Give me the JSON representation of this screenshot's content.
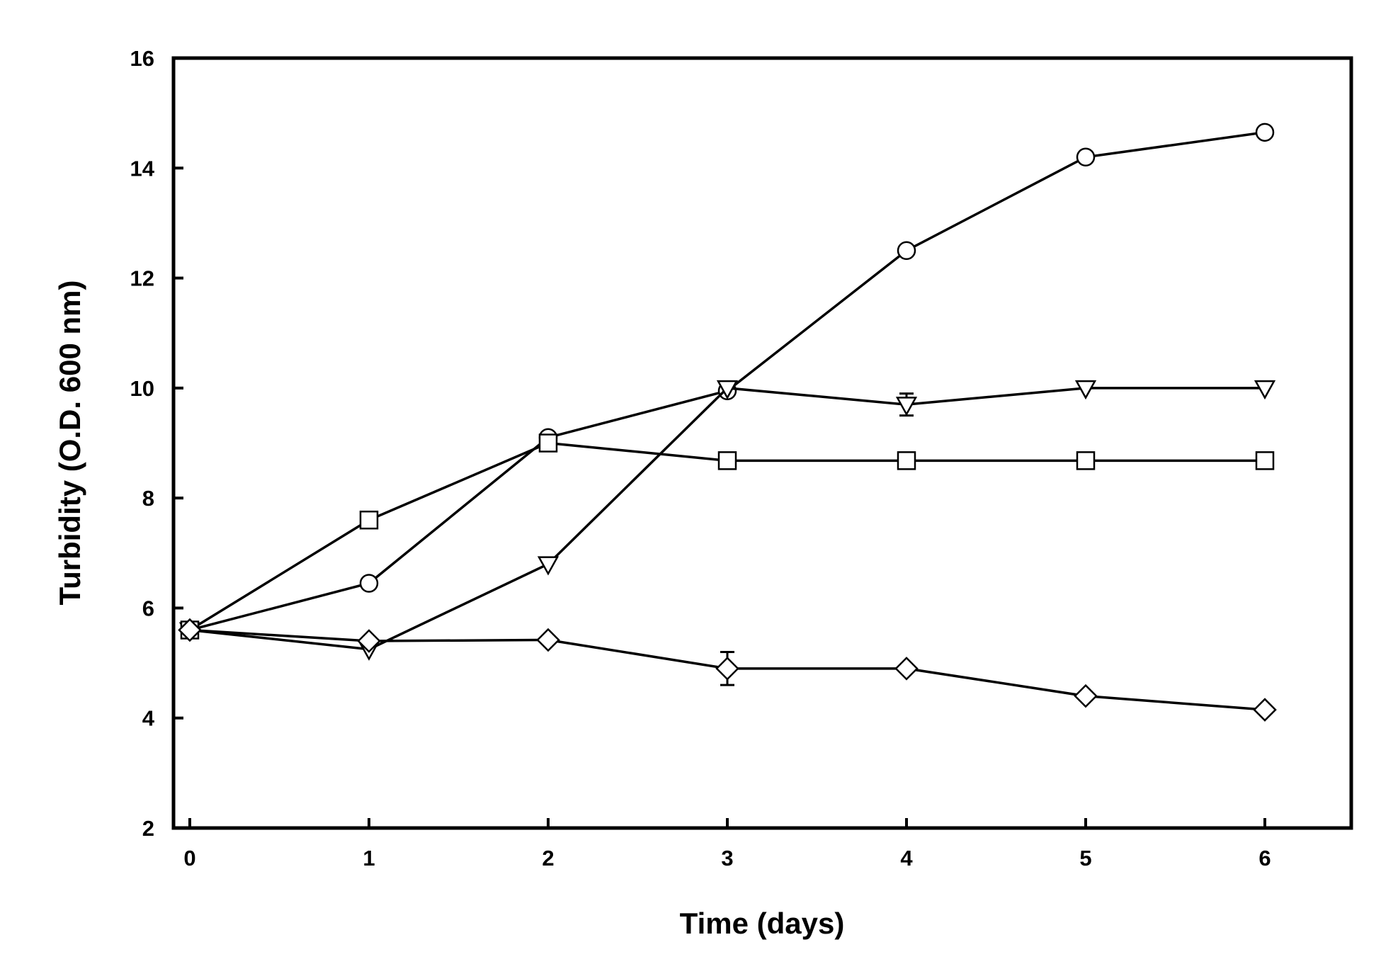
{
  "chart_data": {
    "type": "line",
    "title": "",
    "xlabel": "Time (days)",
    "ylabel": "Turbidity (O.D. 600 nm)",
    "xlim": [
      -0.1,
      6.5
    ],
    "ylim": [
      2,
      16
    ],
    "xticks": [
      0,
      1,
      2,
      3,
      4,
      5,
      6
    ],
    "yticks": [
      2,
      4,
      6,
      8,
      10,
      12,
      14,
      16
    ],
    "xtick_labels": [
      "0",
      "1",
      "2",
      "3",
      "4",
      "5",
      "6"
    ],
    "ytick_labels": [
      "2",
      "4",
      "6",
      "8",
      "10",
      "12",
      "14",
      "16"
    ],
    "grid": false,
    "legend": "none",
    "series": [
      {
        "marker": "circle",
        "x": [
          0,
          1,
          2,
          3,
          4,
          5,
          6
        ],
        "y": [
          5.6,
          6.45,
          9.1,
          9.95,
          12.5,
          14.2,
          14.65
        ],
        "error": [
          0,
          0,
          0,
          0,
          0,
          0,
          0
        ]
      },
      {
        "marker": "triangle-down",
        "x": [
          0,
          1,
          2,
          3,
          4,
          5,
          6
        ],
        "y": [
          5.6,
          5.25,
          6.8,
          10.0,
          9.7,
          10.0,
          10.0
        ],
        "error": [
          0,
          0,
          0,
          0,
          0.2,
          0,
          0
        ]
      },
      {
        "marker": "square",
        "x": [
          0,
          1,
          2,
          3,
          4,
          5,
          6
        ],
        "y": [
          5.6,
          7.6,
          9.0,
          8.68,
          8.68,
          8.68,
          8.68
        ],
        "error": [
          0,
          0,
          0,
          0,
          0,
          0,
          0
        ]
      },
      {
        "marker": "diamond",
        "x": [
          0,
          1,
          2,
          3,
          4,
          5,
          6
        ],
        "y": [
          5.6,
          5.4,
          5.42,
          4.9,
          4.9,
          4.4,
          4.15
        ],
        "error": [
          0,
          0,
          0,
          0.3,
          0,
          0,
          0
        ]
      }
    ]
  }
}
